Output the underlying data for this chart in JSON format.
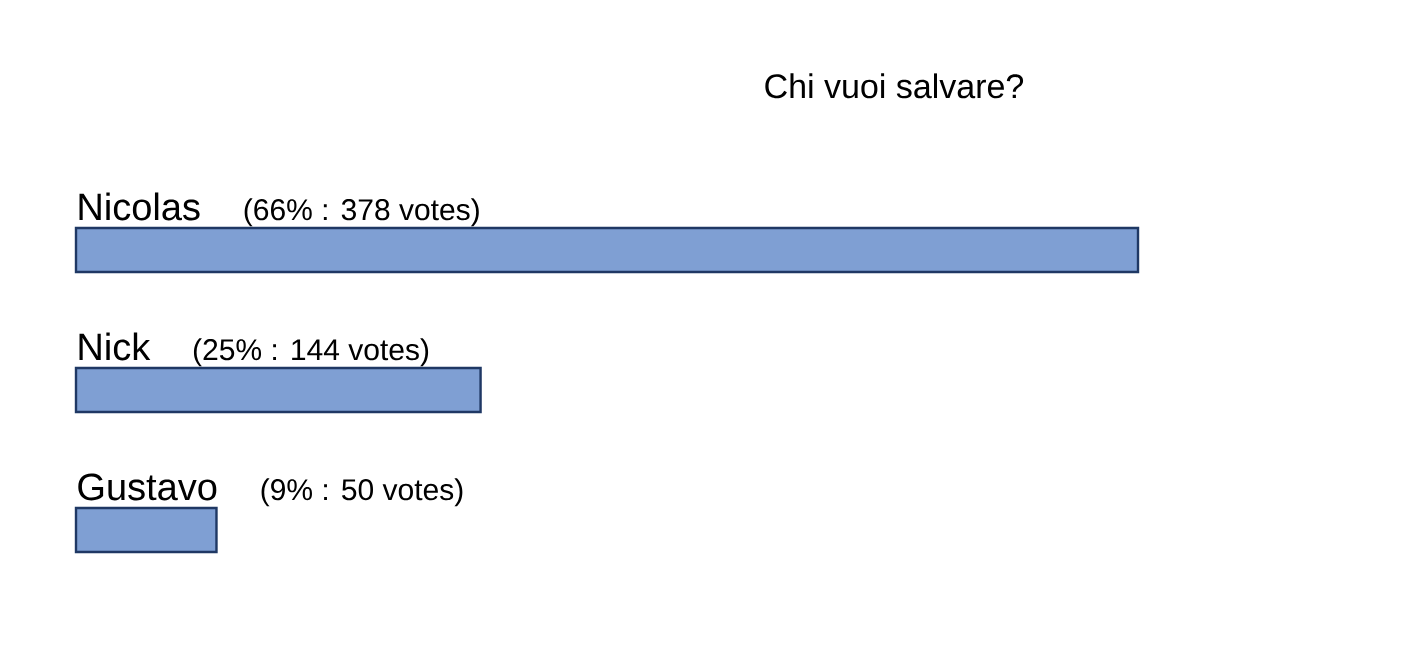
{
  "chart_data": {
    "type": "bar",
    "orientation": "horizontal",
    "title": "Chi vuoi salvare?",
    "categories": [
      "Nicolas",
      "Nick",
      "Gustavo"
    ],
    "values": [
      378,
      144,
      50
    ],
    "value_labels": [
      "(66% : 378 votes)",
      "(25% : 144 votes)",
      "(9% : 50 votes)"
    ],
    "color": "#7f9fd3"
  }
}
